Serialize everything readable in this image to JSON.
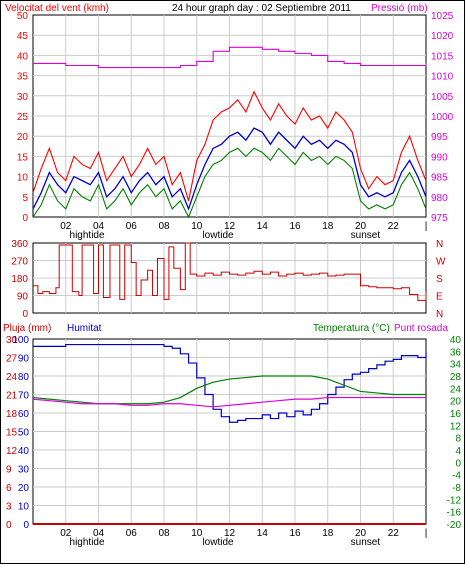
{
  "header": {
    "left_label": "Velocitat del vent (kmh)",
    "title": "24 hour graph day : 02 Septiembre 2011",
    "right_label": "Pressió (mb)"
  },
  "x_axis": {
    "hour_ticks": [
      "02",
      "04",
      "06",
      "08",
      "10",
      "12",
      "14",
      "16",
      "18",
      "20",
      "22",
      "|"
    ],
    "markers": [
      {
        "label": "hightide",
        "at": 3.3
      },
      {
        "label": "lowtide",
        "at": 11.3
      },
      {
        "label": "sunset",
        "at": 20.3
      }
    ]
  },
  "bottom_header": {
    "rain_label": "Pluja (mm)",
    "humidity_label": "Humitat",
    "temp_label": "Temperatura (°C)",
    "dew_label": "Punt rosada"
  },
  "colors": {
    "wind_gust": "#ff0000",
    "wind_avg": "#0000cc",
    "wind_low": "#008000",
    "pressure": "#dd00dd",
    "direction": "#cc0000",
    "humidity": "#0000cc",
    "temperature": "#008000",
    "dew_point": "#dd00dd",
    "rain": "#cc0000",
    "grid": "#cccccc"
  },
  "chart_data": [
    {
      "type": "line",
      "name": "wind_pressure",
      "x_unit": "hours",
      "left_axis": {
        "label": "Velocitat del vent (kmh)",
        "ylim": [
          0,
          50
        ],
        "ticks": [
          "0",
          "5",
          "10",
          "15",
          "20",
          "25",
          "30",
          "35",
          "40",
          "45",
          "50"
        ]
      },
      "right_axis": {
        "label": "Pressió (mb)",
        "ylim": [
          975,
          1025
        ],
        "ticks": [
          "975",
          "980",
          "985",
          "990",
          "995",
          "1000",
          "1005",
          "1010",
          "1015",
          "1020",
          "1025"
        ]
      },
      "series": [
        {
          "key": "gust",
          "axis": "left",
          "x": [
            0,
            0.5,
            1,
            1.5,
            2,
            2.5,
            3,
            3.5,
            4,
            4.5,
            5,
            5.5,
            6,
            6.5,
            7,
            7.5,
            8,
            8.5,
            9,
            9.5,
            10,
            10.5,
            11,
            11.5,
            12,
            12.5,
            13,
            13.5,
            14,
            14.5,
            15,
            15.5,
            16,
            16.5,
            17,
            17.5,
            18,
            18.5,
            19,
            19.5,
            20,
            20.5,
            21,
            21.5,
            22,
            22.5,
            23,
            23.5,
            24
          ],
          "y": [
            6,
            12,
            17,
            11,
            9,
            15,
            13,
            12,
            16,
            9,
            12,
            15,
            10,
            13,
            17,
            13,
            15,
            8,
            11,
            4,
            14,
            18,
            24,
            26,
            27,
            29,
            26,
            31,
            27,
            24,
            28,
            25,
            23,
            27,
            24,
            25,
            22,
            26,
            24,
            21,
            12,
            7,
            10,
            8,
            9,
            16,
            20,
            14,
            9
          ]
        },
        {
          "key": "avg",
          "axis": "left",
          "x": [
            0,
            0.5,
            1,
            1.5,
            2,
            2.5,
            3,
            3.5,
            4,
            4.5,
            5,
            5.5,
            6,
            6.5,
            7,
            7.5,
            8,
            8.5,
            9,
            9.5,
            10,
            10.5,
            11,
            11.5,
            12,
            12.5,
            13,
            13.5,
            14,
            14.5,
            15,
            15.5,
            16,
            16.5,
            17,
            17.5,
            18,
            18.5,
            19,
            19.5,
            20,
            20.5,
            21,
            21.5,
            22,
            22.5,
            23,
            23.5,
            24
          ],
          "y": [
            2,
            6,
            11,
            8,
            6,
            10,
            9,
            8,
            11,
            5,
            7,
            10,
            6,
            9,
            11,
            8,
            10,
            5,
            7,
            2,
            8,
            13,
            17,
            18,
            20,
            21,
            19,
            22,
            21,
            18,
            21,
            19,
            17,
            20,
            18,
            19,
            17,
            19,
            18,
            16,
            8,
            5,
            6,
            5,
            6,
            11,
            14,
            10,
            5
          ]
        },
        {
          "key": "low",
          "axis": "left",
          "x": [
            0,
            0.5,
            1,
            1.5,
            2,
            2.5,
            3,
            3.5,
            4,
            4.5,
            5,
            5.5,
            6,
            6.5,
            7,
            7.5,
            8,
            8.5,
            9,
            9.5,
            10,
            10.5,
            11,
            11.5,
            12,
            12.5,
            13,
            13.5,
            14,
            14.5,
            15,
            15.5,
            16,
            16.5,
            17,
            17.5,
            18,
            18.5,
            19,
            19.5,
            20,
            20.5,
            21,
            21.5,
            22,
            22.5,
            23,
            23.5,
            24
          ],
          "y": [
            0,
            3,
            8,
            4,
            2,
            7,
            5,
            4,
            8,
            2,
            4,
            7,
            3,
            6,
            8,
            5,
            7,
            2,
            4,
            0,
            5,
            10,
            13,
            14,
            16,
            17,
            15,
            17,
            16,
            14,
            17,
            15,
            13,
            16,
            14,
            15,
            13,
            15,
            14,
            12,
            4,
            2,
            3,
            2,
            3,
            8,
            11,
            7,
            2
          ]
        },
        {
          "key": "pressure",
          "axis": "right",
          "x": [
            0,
            1,
            2,
            3,
            4,
            5,
            6,
            7,
            8,
            9,
            10,
            11,
            12,
            13,
            14,
            15,
            16,
            17,
            18,
            19,
            20,
            21,
            22,
            23,
            24
          ],
          "y": [
            1013,
            1013,
            1012.5,
            1012.5,
            1012,
            1012,
            1012,
            1012,
            1012,
            1012.5,
            1013.5,
            1016,
            1017,
            1017,
            1016.5,
            1016,
            1015.5,
            1015,
            1013.5,
            1013,
            1012.5,
            1012.5,
            1012.5,
            1012.5,
            1013
          ]
        }
      ]
    },
    {
      "type": "line",
      "name": "wind_direction",
      "x_unit": "hours",
      "ylim": [
        0,
        360
      ],
      "left_ticks": [
        "0",
        "90",
        "180",
        "270",
        "360"
      ],
      "right_ticks": [
        "N",
        "E",
        "S",
        "W",
        "N"
      ],
      "series": [
        {
          "key": "direction",
          "x": [
            0,
            0.3,
            0.6,
            1,
            1.4,
            1.6,
            2,
            2.4,
            2.8,
            3,
            3.4,
            3.7,
            4,
            4.3,
            4.7,
            5,
            5.3,
            5.6,
            6,
            6.3,
            6.6,
            7,
            7.3,
            7.6,
            8,
            8.3,
            8.6,
            9,
            9.3,
            9.6,
            10,
            10.5,
            11,
            11.5,
            12,
            12.5,
            13,
            13.5,
            14,
            14.5,
            15,
            15.5,
            16,
            16.5,
            17,
            17.5,
            18,
            18.5,
            19,
            19.5,
            20,
            20.5,
            21,
            21.5,
            22,
            22.5,
            23,
            23.5,
            24
          ],
          "y": [
            140,
            100,
            110,
            100,
            130,
            350,
            350,
            110,
            90,
            350,
            350,
            100,
            350,
            80,
            350,
            350,
            70,
            350,
            260,
            90,
            170,
            220,
            90,
            280,
            70,
            340,
            230,
            120,
            360,
            200,
            190,
            205,
            195,
            210,
            200,
            195,
            205,
            215,
            200,
            210,
            190,
            200,
            205,
            195,
            200,
            205,
            190,
            195,
            200,
            200,
            140,
            135,
            130,
            130,
            125,
            130,
            95,
            65,
            110
          ]
        }
      ]
    },
    {
      "type": "line",
      "name": "humidity_temperature",
      "x_unit": "hours",
      "rain_axis": {
        "label": "Pluja (mm)",
        "ylim": [
          0,
          30
        ],
        "ticks": [
          "0",
          "3",
          "6",
          "9",
          "12",
          "15",
          "18",
          "21",
          "24",
          "27",
          "30"
        ]
      },
      "humidity_axis": {
        "label": "Humitat",
        "ylim": [
          0,
          100
        ],
        "ticks": [
          "0",
          "10",
          "20",
          "30",
          "40",
          "50",
          "60",
          "70",
          "80",
          "90",
          "100"
        ]
      },
      "temp_axis": {
        "label": "Temperatura (°C)",
        "ylim": [
          -20,
          40
        ],
        "ticks": [
          "-20",
          "-16",
          "-12",
          "-8",
          "-4",
          "0",
          "4",
          "8",
          "12",
          "16",
          "20",
          "24",
          "28",
          "34",
          "36",
          "40"
        ]
      },
      "series": [
        {
          "key": "humidity",
          "axis": "humidity",
          "x": [
            0,
            1,
            2,
            3,
            4,
            5,
            6,
            7,
            8,
            8.5,
            9,
            9.5,
            10,
            10.5,
            11,
            11.5,
            12,
            12.5,
            13,
            13.5,
            14,
            14.5,
            15,
            15.5,
            16,
            16.5,
            17,
            17.5,
            18,
            18.5,
            19,
            19.5,
            20,
            20.5,
            21,
            21.5,
            22,
            22.5,
            23,
            23.5,
            24
          ],
          "y": [
            96,
            96,
            97,
            97,
            97,
            97,
            97,
            97,
            96,
            95,
            92,
            87,
            79,
            70,
            62,
            58,
            55,
            56,
            57,
            57,
            59,
            57,
            60,
            58,
            61,
            59,
            62,
            65,
            70,
            74,
            78,
            81,
            82,
            84,
            86,
            88,
            89,
            91,
            91,
            90,
            93
          ]
        },
        {
          "key": "temperature",
          "axis": "temp",
          "x": [
            0,
            1,
            2,
            3,
            4,
            5,
            6,
            7,
            8,
            9,
            10,
            11,
            12,
            13,
            14,
            15,
            16,
            17,
            18,
            19,
            20,
            21,
            22,
            23,
            24
          ],
          "y": [
            21,
            20.5,
            20,
            19.5,
            19,
            19,
            19,
            19,
            19.5,
            21,
            24,
            26,
            27,
            27.5,
            28,
            28,
            28,
            28,
            27,
            25,
            23,
            22.5,
            22,
            22,
            22
          ]
        },
        {
          "key": "dew_point",
          "axis": "temp",
          "x": [
            0,
            1,
            2,
            3,
            4,
            5,
            6,
            7,
            8,
            9,
            10,
            11,
            12,
            13,
            14,
            15,
            16,
            17,
            18,
            19,
            20,
            21,
            22,
            23,
            24
          ],
          "y": [
            20.5,
            20,
            19.5,
            19,
            19,
            19,
            18.5,
            18.5,
            19,
            19,
            18.5,
            18,
            18.5,
            19,
            19.5,
            20,
            20.5,
            20.5,
            21,
            21,
            21,
            21,
            21,
            21,
            21
          ]
        },
        {
          "key": "rain",
          "axis": "rain",
          "x": [
            0,
            24
          ],
          "y": [
            0,
            0
          ]
        }
      ]
    }
  ]
}
